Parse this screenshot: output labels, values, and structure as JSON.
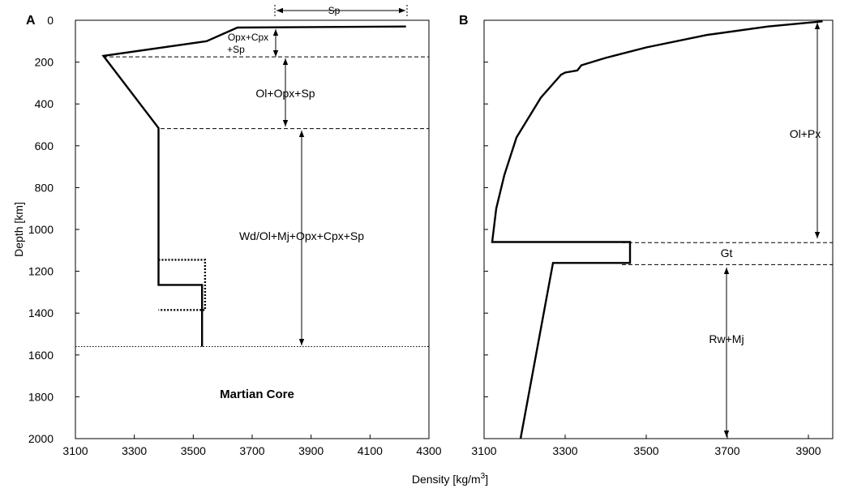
{
  "chart_data": [
    {
      "panel": "A",
      "type": "line",
      "xlim": [
        3100,
        4300
      ],
      "ylim": [
        0,
        2000
      ],
      "y_inverted": true,
      "xticks": [
        3100,
        3300,
        3500,
        3700,
        3900,
        4100,
        4300
      ],
      "yticks": [
        0,
        200,
        400,
        600,
        800,
        1000,
        1200,
        1400,
        1600,
        1800,
        2000
      ],
      "ylabel": "Depth [km]",
      "series": [
        {
          "style": "solid",
          "x": [
            4222,
            3650,
            3545,
            3195,
            3382,
            3382,
            3530,
            3530
          ],
          "y": [
            30,
            35,
            100,
            170,
            515,
            1265,
            1265,
            1560
          ]
        },
        {
          "style": "dotted",
          "x": [
            3382,
            3540,
            3540,
            3382
          ],
          "y": [
            1145,
            1145,
            1385,
            1385
          ]
        }
      ],
      "boundaries": [
        {
          "depth": 175,
          "style": "dashed"
        },
        {
          "depth": 518,
          "style": "dashed"
        },
        {
          "depth": 1560,
          "style": "dotted"
        }
      ],
      "annotations": [
        "Sp",
        "Opx+Cpx",
        "+Sp",
        "Ol+Opx+Sp",
        "Wd/Ol+Mj+Opx+Cpx+Sp",
        "Martian Core"
      ]
    },
    {
      "panel": "B",
      "type": "line",
      "xlim": [
        3100,
        3960
      ],
      "ylim": [
        0,
        2000
      ],
      "y_inverted": true,
      "xticks": [
        3100,
        3300,
        3500,
        3700,
        3900
      ],
      "series": [
        {
          "style": "solid",
          "x": [
            3935,
            3800,
            3650,
            3500,
            3400,
            3340,
            3330,
            3300,
            3290,
            3240,
            3180,
            3150,
            3130,
            3120,
            3460,
            3460,
            3270,
            3190
          ],
          "y": [
            5,
            30,
            70,
            130,
            180,
            215,
            240,
            250,
            260,
            370,
            560,
            740,
            900,
            1060,
            1060,
            1160,
            1160,
            2000
          ]
        }
      ],
      "boundaries": [
        {
          "depth": 1063,
          "style": "dashed"
        },
        {
          "depth": 1168,
          "style": "dashed"
        }
      ],
      "annotations": [
        "Ol+Px",
        "Gt",
        "Rw+Mj"
      ]
    }
  ],
  "xlabel_main": "Density [kg/m",
  "xlabel_exp": "3",
  "xlabel_close": "]"
}
